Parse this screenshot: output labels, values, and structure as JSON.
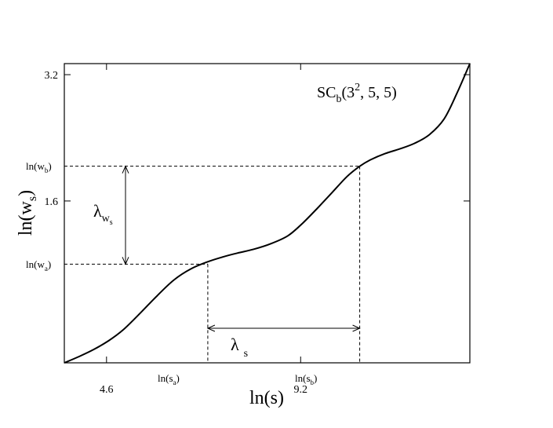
{
  "chart_data": {
    "type": "line",
    "title": "",
    "xlabel": "ln(s)",
    "ylabel_base": "ln(w",
    "ylabel_sub": "s",
    "ylabel_close": ")",
    "xlim": [
      3.6,
      13.21
    ],
    "ylim": [
      -0.45,
      3.34
    ],
    "xticks": [
      {
        "value": 4.6,
        "label": "4.6"
      },
      {
        "value": 9.2,
        "label": "9.2"
      }
    ],
    "yticks": [
      {
        "value": 1.6,
        "label": "1.6"
      },
      {
        "value": 3.2,
        "label": "3.2"
      }
    ],
    "grid": false,
    "annotation_label": {
      "base": "SC",
      "sub": "b",
      "paren_open": "(3",
      "sup": "2",
      "rest": ", 5, 5)"
    },
    "markers": {
      "x_a": 7.0,
      "x_b": 10.6,
      "y_a": 0.8,
      "y_b": 2.04,
      "ln_sa": {
        "base": "ln(s",
        "sub": "a",
        "close": ")"
      },
      "ln_sb": {
        "base": "ln(s",
        "sub": "b",
        "close": ")"
      },
      "ln_wa": {
        "base": "ln(w",
        "sub": "a",
        "close": ")"
      },
      "ln_wb": {
        "base": "ln(w",
        "sub": "b",
        "close": ")"
      },
      "lambda_s": {
        "symbol": "λ",
        "sub": "s"
      },
      "lambda_w": {
        "symbol": "λ",
        "sub": "w",
        "subsub": "s"
      }
    },
    "series": [
      {
        "x": [
          3.6,
          3.95,
          4.3,
          4.65,
          5.0,
          5.4,
          5.8,
          6.2,
          6.6,
          7.0,
          7.35,
          7.7,
          8.1,
          8.5,
          8.9,
          9.25,
          9.6,
          9.95,
          10.3,
          10.6,
          10.85,
          11.2,
          11.55,
          11.9,
          12.25,
          12.6,
          12.9,
          13.21
        ],
        "y": [
          -0.45,
          -0.37,
          -0.28,
          -0.17,
          -0.03,
          0.18,
          0.4,
          0.6,
          0.74,
          0.83,
          0.89,
          0.94,
          0.99,
          1.06,
          1.16,
          1.32,
          1.51,
          1.71,
          1.91,
          2.04,
          2.12,
          2.2,
          2.26,
          2.33,
          2.44,
          2.64,
          2.96,
          3.34
        ]
      }
    ]
  }
}
